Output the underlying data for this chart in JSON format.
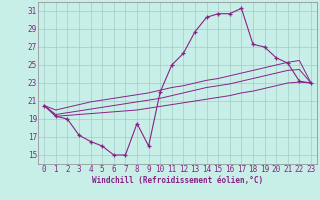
{
  "xlabel": "Windchill (Refroidissement éolien,°C)",
  "bg_color": "#c8eee8",
  "grid_color": "#a0ccc4",
  "line_color": "#882288",
  "xlim": [
    -0.5,
    23.5
  ],
  "ylim": [
    14,
    32
  ],
  "yticks": [
    15,
    17,
    19,
    21,
    23,
    25,
    27,
    29,
    31
  ],
  "xticks": [
    0,
    1,
    2,
    3,
    4,
    5,
    6,
    7,
    8,
    9,
    10,
    11,
    12,
    13,
    14,
    15,
    16,
    17,
    18,
    19,
    20,
    21,
    22,
    23
  ],
  "hours": [
    0,
    1,
    2,
    3,
    4,
    5,
    6,
    7,
    8,
    9,
    10,
    11,
    12,
    13,
    14,
    15,
    16,
    17,
    18,
    19,
    20,
    21,
    22,
    23
  ],
  "temp": [
    20.5,
    19.3,
    19.0,
    17.2,
    16.5,
    16.0,
    15.0,
    15.0,
    18.5,
    16.0,
    22.0,
    25.0,
    26.3,
    28.7,
    30.3,
    30.7,
    30.7,
    31.3,
    27.3,
    27.0,
    25.8,
    25.2,
    23.2,
    23.0
  ],
  "line1": [
    20.5,
    19.3,
    19.4,
    19.5,
    19.6,
    19.7,
    19.8,
    19.9,
    20.0,
    20.2,
    20.4,
    20.6,
    20.8,
    21.0,
    21.2,
    21.4,
    21.6,
    21.9,
    22.1,
    22.4,
    22.7,
    23.0,
    23.1,
    23.0
  ],
  "line2": [
    20.5,
    19.5,
    19.7,
    19.9,
    20.1,
    20.3,
    20.5,
    20.7,
    20.9,
    21.1,
    21.3,
    21.6,
    21.9,
    22.2,
    22.5,
    22.7,
    22.9,
    23.2,
    23.5,
    23.8,
    24.1,
    24.4,
    24.5,
    23.0
  ],
  "line3": [
    20.5,
    20.0,
    20.3,
    20.6,
    20.9,
    21.1,
    21.3,
    21.5,
    21.7,
    21.9,
    22.2,
    22.5,
    22.7,
    23.0,
    23.3,
    23.5,
    23.8,
    24.1,
    24.4,
    24.7,
    25.0,
    25.3,
    25.5,
    23.0
  ]
}
